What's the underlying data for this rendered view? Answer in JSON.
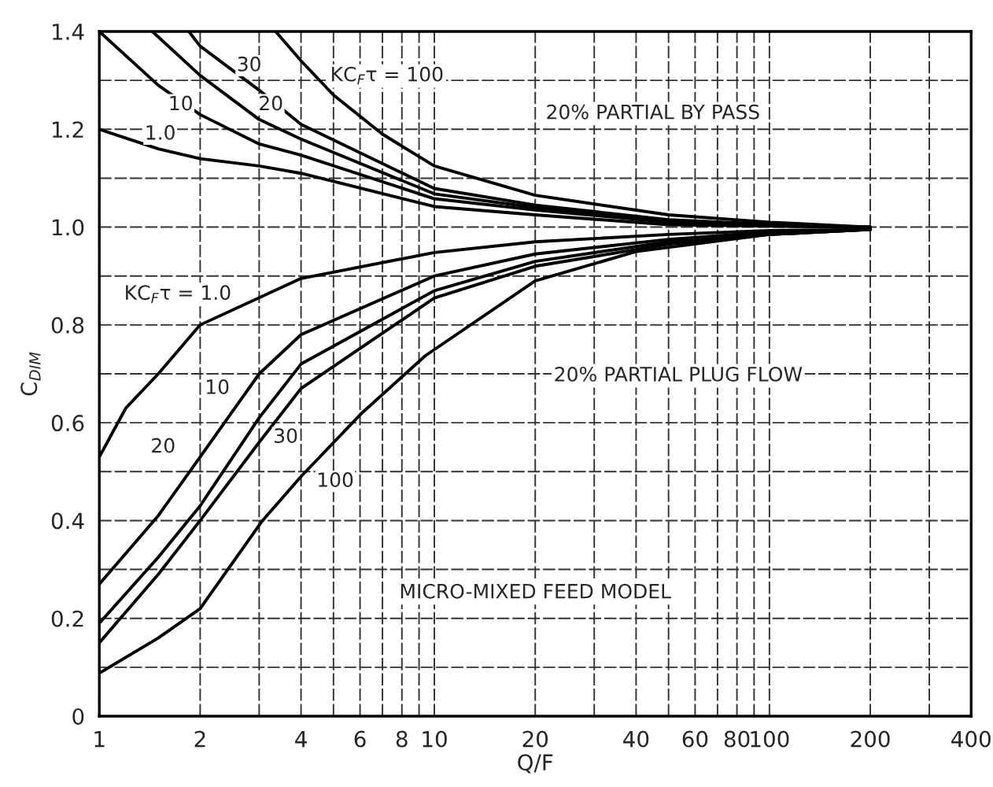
{
  "chart_data": {
    "type": "line",
    "xlabel": "Q/F",
    "ylabel": "C$_{DIM}$",
    "log": "x",
    "grid": true,
    "xlim": [
      1,
      400
    ],
    "ylim": [
      0,
      1.4
    ],
    "xticks": [
      1,
      2,
      {
        "value": 3,
        "label": null
      },
      4,
      {
        "value": 5,
        "label": null
      },
      6,
      {
        "value": 7,
        "label": null
      },
      8,
      {
        "value": 9,
        "label": null
      },
      10,
      20,
      {
        "value": 30,
        "label": null
      },
      40,
      {
        "value": 50,
        "label": null
      },
      60,
      {
        "value": 70,
        "label": null
      },
      80,
      {
        "value": 90,
        "label": null
      },
      100,
      200,
      {
        "value": 300,
        "label": null
      },
      400
    ],
    "yticks": [
      0,
      {
        "value": 0.1,
        "label": null
      },
      0.2,
      {
        "value": 0.3,
        "label": null
      },
      0.4,
      {
        "value": 0.5,
        "label": null
      },
      0.6,
      {
        "value": 0.7,
        "label": null
      },
      0.8,
      {
        "value": 0.9,
        "label": null
      },
      {
        "value": 1.0,
        "label": "1.0"
      },
      {
        "value": 1.1,
        "label": null
      },
      1.2,
      {
        "value": 1.3,
        "label": null
      },
      1.4
    ],
    "series": [
      {
        "color": "#000000",
        "x": [
          1,
          1.5,
          2,
          3,
          4,
          10,
          20,
          50,
          100,
          200
        ],
        "values": [
          1.2,
          1.16,
          1.14,
          1.125,
          1.11,
          1.042,
          1.025,
          1.005,
          1.002,
          1.0
        ]
      },
      {
        "color": "#000000",
        "x": [
          1,
          1.5,
          2,
          3,
          4,
          10,
          20,
          50,
          100,
          200
        ],
        "values": [
          1.4,
          1.29,
          1.23,
          1.17,
          1.147,
          1.058,
          1.035,
          1.01,
          1.004,
          1.0
        ]
      },
      {
        "color": "#000000",
        "x": [
          1.44,
          2,
          3,
          4,
          10,
          20,
          50,
          100,
          200
        ],
        "values": [
          1.4,
          1.31,
          1.22,
          1.18,
          1.068,
          1.04,
          1.013,
          1.005,
          1.0
        ]
      },
      {
        "color": "#000000",
        "x": [
          1.85,
          2,
          3,
          4,
          10,
          20,
          50,
          100,
          200
        ],
        "values": [
          1.4,
          1.37,
          1.28,
          1.21,
          1.079,
          1.045,
          1.015,
          1.006,
          1.0
        ]
      },
      {
        "color": "#000000",
        "x": [
          3.36,
          4,
          5,
          7,
          10,
          20,
          50,
          100,
          200
        ],
        "values": [
          1.4,
          1.34,
          1.27,
          1.19,
          1.125,
          1.065,
          1.025,
          1.01,
          1.0
        ]
      },
      {
        "color": "#000000",
        "x": [
          1,
          1.2,
          1.5,
          2,
          4,
          10,
          20,
          50,
          100,
          200
        ],
        "values": [
          0.53,
          0.63,
          0.7,
          0.8,
          0.895,
          0.948,
          0.97,
          0.985,
          0.993,
          0.995
        ]
      },
      {
        "color": "#000000",
        "x": [
          1,
          1.5,
          2,
          3,
          4,
          10,
          20,
          50,
          100,
          200
        ],
        "values": [
          0.27,
          0.41,
          0.53,
          0.7,
          0.78,
          0.9,
          0.945,
          0.975,
          0.99,
          0.995
        ]
      },
      {
        "color": "#000000",
        "x": [
          1,
          1.5,
          2,
          3,
          4,
          10,
          20,
          50,
          100,
          200
        ],
        "values": [
          0.19,
          0.325,
          0.43,
          0.61,
          0.72,
          0.87,
          0.93,
          0.97,
          0.985,
          0.995
        ]
      },
      {
        "color": "#000000",
        "x": [
          1,
          1.5,
          2,
          3,
          4,
          10,
          20,
          50,
          100,
          200
        ],
        "values": [
          0.15,
          0.29,
          0.4,
          0.56,
          0.67,
          0.855,
          0.92,
          0.965,
          0.985,
          0.995
        ]
      },
      {
        "color": "#000000",
        "x": [
          1,
          1.5,
          2,
          3.07,
          4,
          6.08,
          9.4,
          20,
          40,
          100,
          200
        ],
        "values": [
          0.088,
          0.16,
          0.22,
          0.4,
          0.49,
          0.62,
          0.737,
          0.89,
          0.95,
          0.985,
          0.995
        ]
      }
    ],
    "annotations": [
      "KC$_{F}$τ = 100",
      {
        "text": "30",
        "x": 2.8,
        "y": 1.33
      },
      {
        "text": "20",
        "x": 3.25,
        "y": 1.25
      },
      {
        "text": "10",
        "x": 1.75,
        "y": 1.25
      },
      {
        "text": "1.0",
        "x": 1.52,
        "y": 1.19
      },
      "KC$_{F}$τ = 1.0",
      {
        "text": "10",
        "x": 2.25,
        "y": 0.67
      },
      {
        "text": "20",
        "x": 1.55,
        "y": 0.55
      },
      {
        "text": "30",
        "x": 3.6,
        "y": 0.57
      },
      {
        "text": "100",
        "x": 5.06,
        "y": 0.48
      },
      "20% PARTIAL BY PASS",
      "20% PARTIAL PLUG FLOW",
      "MICRO-MIXED FEED MODEL"
    ]
  }
}
